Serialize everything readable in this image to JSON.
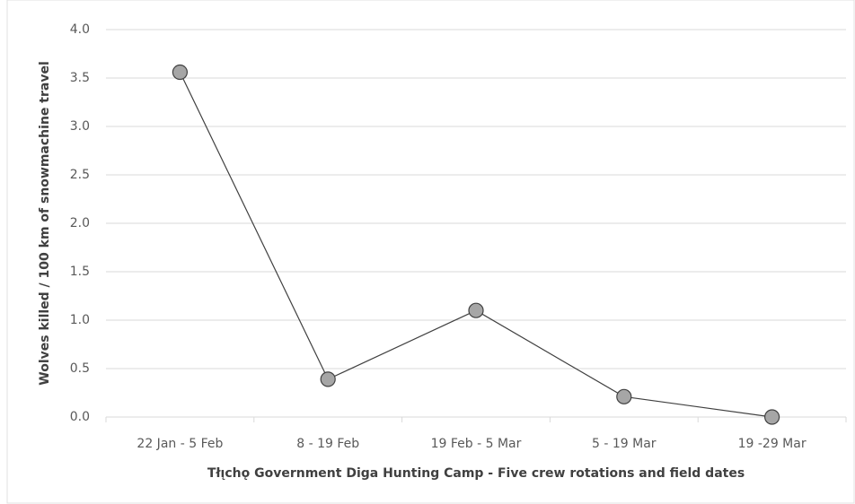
{
  "chart_data": {
    "type": "line",
    "x_label": "Tłı̨chǫ Government Diga Hunting Camp - Five crew rotations and field dates",
    "y_label": "Wolves killed / 100 km of snowmachine travel",
    "categories": [
      "22 Jan - 5 Feb",
      "8 - 19 Feb",
      "19 Feb - 5 Mar",
      "5 - 19 Mar",
      "19 -29 Mar"
    ],
    "series": [
      {
        "name": "Wolves killed",
        "color": "#404040",
        "marker_color": "#a6a6a6",
        "values": [
          3.56,
          0.39,
          1.1,
          0.21,
          0.0
        ]
      }
    ],
    "ylim": [
      0,
      4
    ],
    "yticks": [
      {
        "value": 0,
        "label": "0.0"
      },
      0.5,
      {
        "value": 1,
        "label": "1.0"
      },
      1.5,
      {
        "value": 2,
        "label": "2.0"
      },
      2.5,
      {
        "value": 3,
        "label": "3.0"
      },
      3.5,
      {
        "value": 4,
        "label": "4.0"
      }
    ],
    "grid": true
  }
}
